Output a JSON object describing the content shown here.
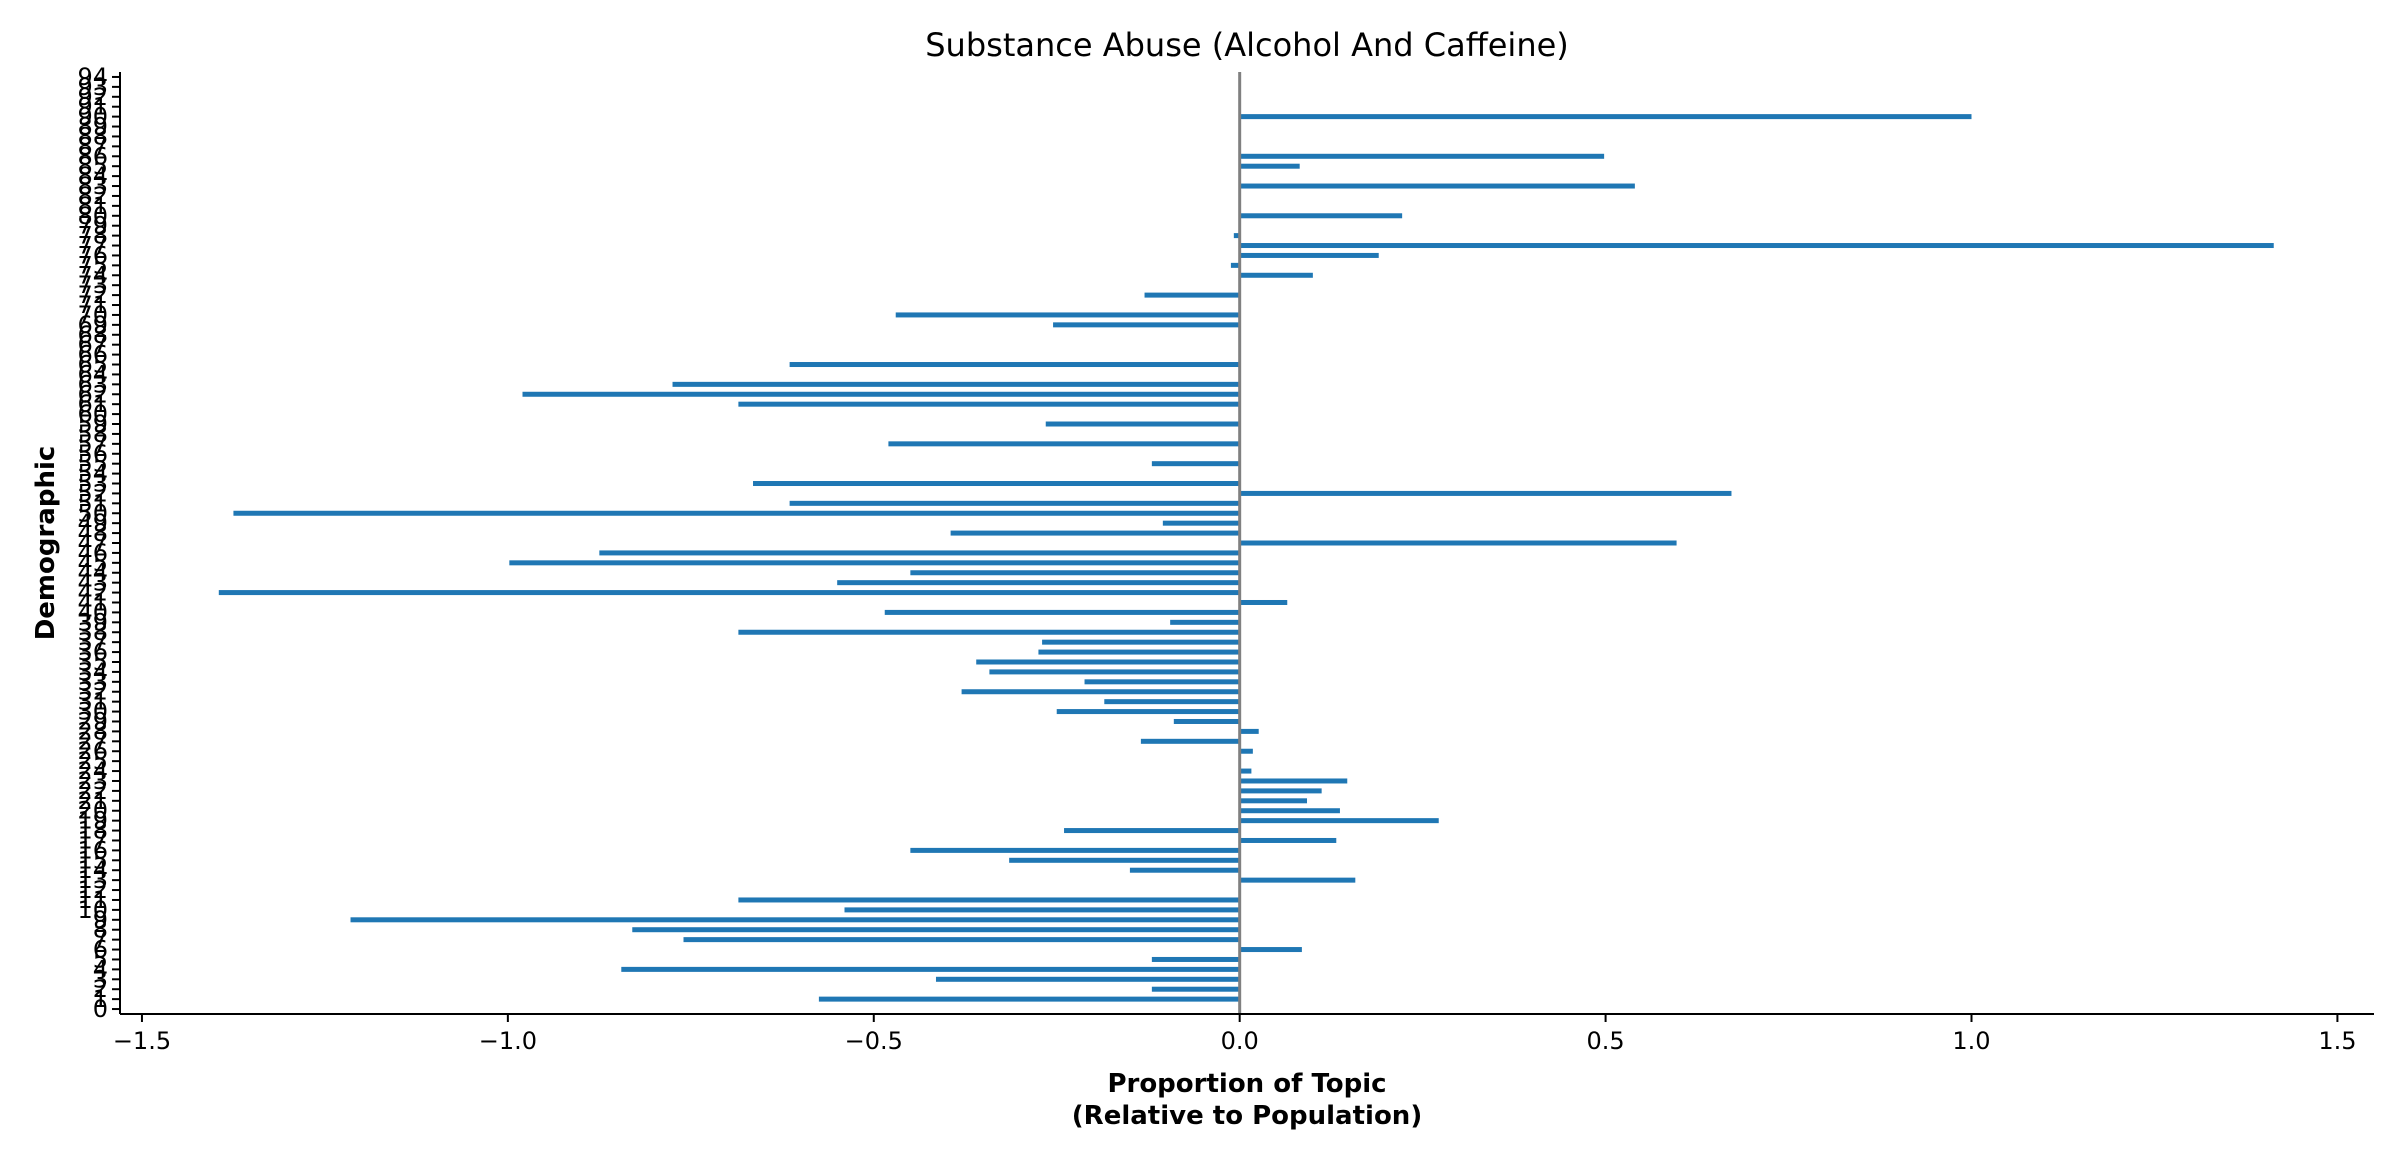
{
  "chart_data": {
    "type": "bar",
    "orientation": "horizontal",
    "title": "Substance Abuse (Alcohol And Caffeine)",
    "xlabel_lines": [
      "Proportion of Topic",
      "(Relative to Population)"
    ],
    "ylabel": "Demographic",
    "xlim": [
      -1.53,
      1.55
    ],
    "xticks": [
      -1.5,
      -1.0,
      -0.5,
      0.0,
      0.5,
      1.0,
      1.5
    ],
    "xtick_labels": [
      "−1.5",
      "−1.0",
      "−0.5",
      "0.0",
      "0.5",
      "1.0",
      "1.5"
    ],
    "ylim": [
      -0.5,
      94.5
    ],
    "yticks": [
      0,
      1,
      2,
      3,
      4,
      5,
      6,
      7,
      8,
      9,
      10,
      11,
      12,
      13,
      14,
      15,
      16,
      17,
      18,
      19,
      20,
      21,
      22,
      23,
      24,
      25,
      26,
      27,
      28,
      29,
      30,
      31,
      32,
      33,
      34,
      35,
      36,
      37,
      38,
      39,
      40,
      41,
      42,
      43,
      44,
      45,
      46,
      47,
      48,
      49,
      50,
      51,
      52,
      53,
      54,
      55,
      56,
      57,
      58,
      59,
      60,
      61,
      62,
      63,
      64,
      65,
      66,
      67,
      68,
      69,
      70,
      71,
      72,
      73,
      74,
      75,
      76,
      77,
      78,
      79,
      80,
      81,
      82,
      83,
      84,
      85,
      86,
      87,
      88,
      89,
      90,
      91,
      92,
      93,
      94
    ],
    "ytick_labels": [
      "0",
      "1",
      "2",
      "3",
      "4",
      "5",
      "6",
      "7",
      "8",
      "9",
      "10",
      "11",
      "12",
      "13",
      "14",
      "15",
      "16",
      "17",
      "18",
      "19",
      "20",
      "21",
      "22",
      "23",
      "24",
      "25",
      "26",
      "27",
      "28",
      "29",
      "30",
      "31",
      "32",
      "33",
      "34",
      "35",
      "36",
      "37",
      "38",
      "39",
      "40",
      "41",
      "42",
      "43",
      "44",
      "45",
      "46",
      "47",
      "48",
      "49",
      "50",
      "51",
      "52",
      "53",
      "54",
      "55",
      "56",
      "57",
      "58",
      "59",
      "60",
      "61",
      "62",
      "63",
      "64",
      "65",
      "66",
      "67",
      "68",
      "69",
      "70",
      "71",
      "72",
      "73",
      "74",
      "75",
      "76",
      "77",
      "78",
      "79",
      "80",
      "81",
      "82",
      "83",
      "84",
      "85",
      "86",
      "87",
      "88",
      "89",
      "90",
      "91",
      "92",
      "93",
      "94"
    ],
    "bar_color": "#1f77b4",
    "zero_line_color": "#808080",
    "grid": false,
    "bars": [
      {
        "y": 1,
        "value": -0.575
      },
      {
        "y": 2,
        "value": -0.12
      },
      {
        "y": 3,
        "value": -0.415
      },
      {
        "y": 4,
        "value": -0.845
      },
      {
        "y": 5,
        "value": -0.12
      },
      {
        "y": 6,
        "value": 0.085
      },
      {
        "y": 7,
        "value": -0.76
      },
      {
        "y": 8,
        "value": -0.83
      },
      {
        "y": 9,
        "value": -1.215
      },
      {
        "y": 10,
        "value": -0.54
      },
      {
        "y": 11,
        "value": -0.685
      },
      {
        "y": 13,
        "value": 0.158
      },
      {
        "y": 14,
        "value": -0.15
      },
      {
        "y": 15,
        "value": -0.315
      },
      {
        "y": 16,
        "value": -0.45
      },
      {
        "y": 17,
        "value": 0.132
      },
      {
        "y": 18,
        "value": -0.24
      },
      {
        "y": 19,
        "value": 0.272
      },
      {
        "y": 20,
        "value": 0.137
      },
      {
        "y": 21,
        "value": 0.092
      },
      {
        "y": 22,
        "value": 0.112
      },
      {
        "y": 23,
        "value": 0.147
      },
      {
        "y": 24,
        "value": 0.016
      },
      {
        "y": 26,
        "value": 0.018
      },
      {
        "y": 27,
        "value": -0.135
      },
      {
        "y": 28,
        "value": 0.026
      },
      {
        "y": 29,
        "value": -0.09
      },
      {
        "y": 30,
        "value": -0.25
      },
      {
        "y": 31,
        "value": -0.185
      },
      {
        "y": 32,
        "value": -0.38
      },
      {
        "y": 33,
        "value": -0.212
      },
      {
        "y": 34,
        "value": -0.342
      },
      {
        "y": 35,
        "value": -0.36
      },
      {
        "y": 36,
        "value": -0.275
      },
      {
        "y": 37,
        "value": -0.27
      },
      {
        "y": 38,
        "value": -0.685
      },
      {
        "y": 39,
        "value": -0.095
      },
      {
        "y": 40,
        "value": -0.485
      },
      {
        "y": 41,
        "value": 0.065
      },
      {
        "y": 42,
        "value": -1.395
      },
      {
        "y": 43,
        "value": -0.55
      },
      {
        "y": 44,
        "value": -0.45
      },
      {
        "y": 45,
        "value": -0.998
      },
      {
        "y": 46,
        "value": -0.875
      },
      {
        "y": 47,
        "value": 0.597
      },
      {
        "y": 48,
        "value": -0.395
      },
      {
        "y": 49,
        "value": -0.105
      },
      {
        "y": 50,
        "value": -1.375
      },
      {
        "y": 51,
        "value": -0.615
      },
      {
        "y": 52,
        "value": 0.672
      },
      {
        "y": 53,
        "value": -0.665
      },
      {
        "y": 55,
        "value": -0.12
      },
      {
        "y": 57,
        "value": -0.48
      },
      {
        "y": 59,
        "value": -0.265
      },
      {
        "y": 61,
        "value": -0.685
      },
      {
        "y": 62,
        "value": -0.98
      },
      {
        "y": 63,
        "value": -0.775
      },
      {
        "y": 65,
        "value": -0.615
      },
      {
        "y": 69,
        "value": -0.255
      },
      {
        "y": 70,
        "value": -0.47
      },
      {
        "y": 72,
        "value": -0.13
      },
      {
        "y": 74,
        "value": 0.1
      },
      {
        "y": 75,
        "value": -0.012
      },
      {
        "y": 76,
        "value": 0.19
      },
      {
        "y": 77,
        "value": 1.413
      },
      {
        "y": 78,
        "value": -0.008
      },
      {
        "y": 80,
        "value": 0.222
      },
      {
        "y": 83,
        "value": 0.54
      },
      {
        "y": 85,
        "value": 0.082
      },
      {
        "y": 86,
        "value": 0.498
      },
      {
        "y": 90,
        "value": 1.0
      }
    ]
  }
}
